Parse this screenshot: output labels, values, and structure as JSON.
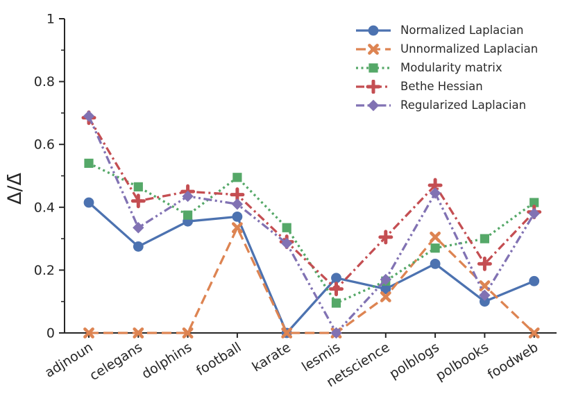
{
  "figure": {
    "background": "#ffffff",
    "axis_color": "#262626",
    "text_color": "#262626"
  },
  "chart_data": {
    "type": "line",
    "title": "",
    "xlabel": "",
    "ylabel": "Δ/Δ̄",
    "ylim": [
      0,
      1
    ],
    "grid": false,
    "legend_position": "upper right",
    "categories": [
      "adjnoun",
      "celegans",
      "dolphins",
      "football",
      "karate",
      "lesmis",
      "netscience",
      "polblogs",
      "polbooks",
      "foodweb"
    ],
    "yticks": [
      {
        "value": 0,
        "label": "0"
      },
      {
        "value": 0.2,
        "label": "0.2"
      },
      {
        "value": 0.4,
        "label": "0.4"
      },
      {
        "value": 0.6,
        "label": "0.6"
      },
      {
        "value": 0.8,
        "label": "0.8"
      },
      {
        "value": 1,
        "label": "1"
      }
    ],
    "minor_yticks": [
      0.1,
      0.3,
      0.5,
      0.7,
      0.9
    ],
    "series": [
      {
        "name": "Normalized Laplacian",
        "color": "#4C72B0",
        "line_style": "solid",
        "marker": "circle",
        "values": [
          0.415,
          0.275,
          0.355,
          0.37,
          0.0,
          0.175,
          0.14,
          0.22,
          0.1,
          0.165
        ]
      },
      {
        "name": "Unnormalized Laplacian",
        "color": "#DD8452",
        "line_style": "dashed",
        "marker": "x",
        "values": [
          0.0,
          0.0,
          0.0,
          0.335,
          0.0,
          0.0,
          0.115,
          0.305,
          0.15,
          0.0
        ]
      },
      {
        "name": "Modularity matrix",
        "color": "#55A868",
        "line_style": "dotted",
        "marker": "square",
        "values": [
          0.54,
          0.465,
          0.375,
          0.495,
          0.335,
          0.095,
          0.165,
          0.27,
          0.3,
          0.415
        ]
      },
      {
        "name": "Bethe Hessian",
        "color": "#C44E52",
        "line_style": "dashdot",
        "marker": "plus",
        "values": [
          0.685,
          0.42,
          0.45,
          0.44,
          0.29,
          0.14,
          0.305,
          0.47,
          0.22,
          0.385
        ]
      },
      {
        "name": "Regularized Laplacian",
        "color": "#8172B3",
        "line_style": "dashdotdot",
        "marker": "diamond",
        "values": [
          0.69,
          0.335,
          0.435,
          0.41,
          0.285,
          0.0,
          0.17,
          0.445,
          0.12,
          0.38
        ]
      }
    ]
  }
}
